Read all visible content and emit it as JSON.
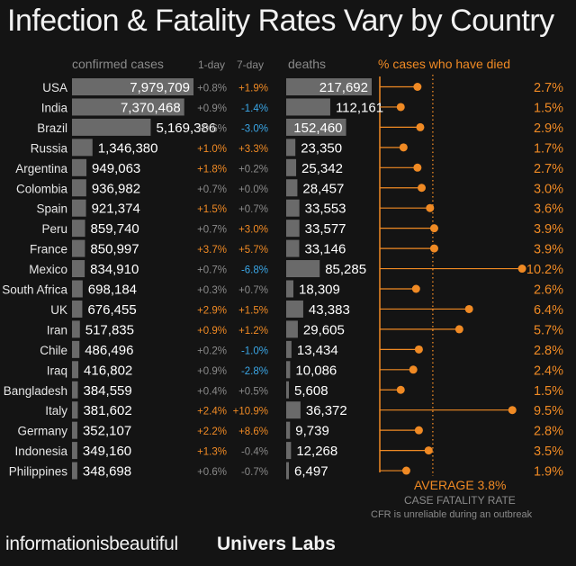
{
  "title": "Infection & Fatality Rates Vary by Country",
  "headers": {
    "confirmed": "confirmed cases",
    "one_day": "1-day",
    "seven_day": "7-day",
    "deaths": "deaths",
    "cfr": "% cases who have died"
  },
  "average": {
    "label": "AVERAGE 3.8%",
    "value": 3.8,
    "subtitle": "CASE FATALITY RATE",
    "note": "CFR is unreliable during an outbreak"
  },
  "footer": {
    "left": "informationisbeautiful",
    "right": "Univers Labs"
  },
  "colors": {
    "background": "#141414",
    "bar": "#6a6a6a",
    "accent": "#f08a24",
    "positive_change": "#f08a24",
    "negative_change": "#3aa6e6",
    "neutral_change": "#8a8a8a"
  },
  "chart_data": {
    "type": "table",
    "rows": [
      {
        "country": "USA",
        "cases": 7979709,
        "cases_label": "7,979,709",
        "d1": "+0.8%",
        "d1_class": "neutral",
        "d7": "+1.9%",
        "d7_class": "pos",
        "deaths": 217692,
        "deaths_label": "217,692",
        "cfr": 2.7,
        "cfr_label": "2.7%"
      },
      {
        "country": "India",
        "cases": 7370468,
        "cases_label": "7,370,468",
        "d1": "+0.9%",
        "d1_class": "neutral",
        "d7": "-1.4%",
        "d7_class": "neg",
        "deaths": 112161,
        "deaths_label": "112,161",
        "cfr": 1.5,
        "cfr_label": "1.5%"
      },
      {
        "country": "Brazil",
        "cases": 5169386,
        "cases_label": "5,169,386",
        "d1": "+0.6%",
        "d1_class": "neutral",
        "d7": "-3.0%",
        "d7_class": "neg",
        "deaths": 152460,
        "deaths_label": "152,460",
        "cfr": 2.9,
        "cfr_label": "2.9%"
      },
      {
        "country": "Russia",
        "cases": 1346380,
        "cases_label": "1,346,380",
        "d1": "+1.0%",
        "d1_class": "pos",
        "d7": "+3.3%",
        "d7_class": "pos",
        "deaths": 23350,
        "deaths_label": "23,350",
        "cfr": 1.7,
        "cfr_label": "1.7%"
      },
      {
        "country": "Argentina",
        "cases": 949063,
        "cases_label": "949,063",
        "d1": "+1.8%",
        "d1_class": "pos",
        "d7": "+0.2%",
        "d7_class": "neutral",
        "deaths": 25342,
        "deaths_label": "25,342",
        "cfr": 2.7,
        "cfr_label": "2.7%"
      },
      {
        "country": "Colombia",
        "cases": 936982,
        "cases_label": "936,982",
        "d1": "+0.7%",
        "d1_class": "neutral",
        "d7": "+0.0%",
        "d7_class": "neutral",
        "deaths": 28457,
        "deaths_label": "28,457",
        "cfr": 3.0,
        "cfr_label": "3.0%"
      },
      {
        "country": "Spain",
        "cases": 921374,
        "cases_label": "921,374",
        "d1": "+1.5%",
        "d1_class": "pos",
        "d7": "+0.7%",
        "d7_class": "neutral",
        "deaths": 33553,
        "deaths_label": "33,553",
        "cfr": 3.6,
        "cfr_label": "3.6%"
      },
      {
        "country": "Peru",
        "cases": 859740,
        "cases_label": "859,740",
        "d1": "+0.7%",
        "d1_class": "neutral",
        "d7": "+3.0%",
        "d7_class": "pos",
        "deaths": 33577,
        "deaths_label": "33,577",
        "cfr": 3.9,
        "cfr_label": "3.9%"
      },
      {
        "country": "France",
        "cases": 850997,
        "cases_label": "850,997",
        "d1": "+3.7%",
        "d1_class": "pos",
        "d7": "+5.7%",
        "d7_class": "pos",
        "deaths": 33146,
        "deaths_label": "33,146",
        "cfr": 3.9,
        "cfr_label": "3.9%"
      },
      {
        "country": "Mexico",
        "cases": 834910,
        "cases_label": "834,910",
        "d1": "+0.7%",
        "d1_class": "neutral",
        "d7": "-6.8%",
        "d7_class": "neg",
        "deaths": 85285,
        "deaths_label": "85,285",
        "cfr": 10.2,
        "cfr_label": "10.2%"
      },
      {
        "country": "South Africa",
        "cases": 698184,
        "cases_label": "698,184",
        "d1": "+0.3%",
        "d1_class": "neutral",
        "d7": "+0.7%",
        "d7_class": "neutral",
        "deaths": 18309,
        "deaths_label": "18,309",
        "cfr": 2.6,
        "cfr_label": "2.6%"
      },
      {
        "country": "UK",
        "cases": 676455,
        "cases_label": "676,455",
        "d1": "+2.9%",
        "d1_class": "pos",
        "d7": "+1.5%",
        "d7_class": "pos",
        "deaths": 43383,
        "deaths_label": "43,383",
        "cfr": 6.4,
        "cfr_label": "6.4%"
      },
      {
        "country": "Iran",
        "cases": 517835,
        "cases_label": "517,835",
        "d1": "+0.9%",
        "d1_class": "pos",
        "d7": "+1.2%",
        "d7_class": "pos",
        "deaths": 29605,
        "deaths_label": "29,605",
        "cfr": 5.7,
        "cfr_label": "5.7%"
      },
      {
        "country": "Chile",
        "cases": 486496,
        "cases_label": "486,496",
        "d1": "+0.2%",
        "d1_class": "neutral",
        "d7": "-1.0%",
        "d7_class": "neg",
        "deaths": 13434,
        "deaths_label": "13,434",
        "cfr": 2.8,
        "cfr_label": "2.8%"
      },
      {
        "country": "Iraq",
        "cases": 416802,
        "cases_label": "416,802",
        "d1": "+0.9%",
        "d1_class": "neutral",
        "d7": "-2.8%",
        "d7_class": "neg",
        "deaths": 10086,
        "deaths_label": "10,086",
        "cfr": 2.4,
        "cfr_label": "2.4%"
      },
      {
        "country": "Bangladesh",
        "cases": 384559,
        "cases_label": "384,559",
        "d1": "+0.4%",
        "d1_class": "neutral",
        "d7": "+0.5%",
        "d7_class": "neutral",
        "deaths": 5608,
        "deaths_label": "5,608",
        "cfr": 1.5,
        "cfr_label": "1.5%"
      },
      {
        "country": "Italy",
        "cases": 381602,
        "cases_label": "381,602",
        "d1": "+2.4%",
        "d1_class": "pos",
        "d7": "+10.9%",
        "d7_class": "pos",
        "deaths": 36372,
        "deaths_label": "36,372",
        "cfr": 9.5,
        "cfr_label": "9.5%"
      },
      {
        "country": "Germany",
        "cases": 352107,
        "cases_label": "352,107",
        "d1": "+2.2%",
        "d1_class": "pos",
        "d7": "+8.6%",
        "d7_class": "pos",
        "deaths": 9739,
        "deaths_label": "9,739",
        "cfr": 2.8,
        "cfr_label": "2.8%"
      },
      {
        "country": "Indonesia",
        "cases": 349160,
        "cases_label": "349,160",
        "d1": "+1.3%",
        "d1_class": "pos",
        "d7": "-0.4%",
        "d7_class": "neutral",
        "deaths": 12268,
        "deaths_label": "12,268",
        "cfr": 3.5,
        "cfr_label": "3.5%"
      },
      {
        "country": "Philippines",
        "cases": 348698,
        "cases_label": "348,698",
        "d1": "+0.6%",
        "d1_class": "neutral",
        "d7": "-0.7%",
        "d7_class": "neutral",
        "deaths": 6497,
        "deaths_label": "6,497",
        "cfr": 1.9,
        "cfr_label": "1.9%"
      }
    ]
  }
}
